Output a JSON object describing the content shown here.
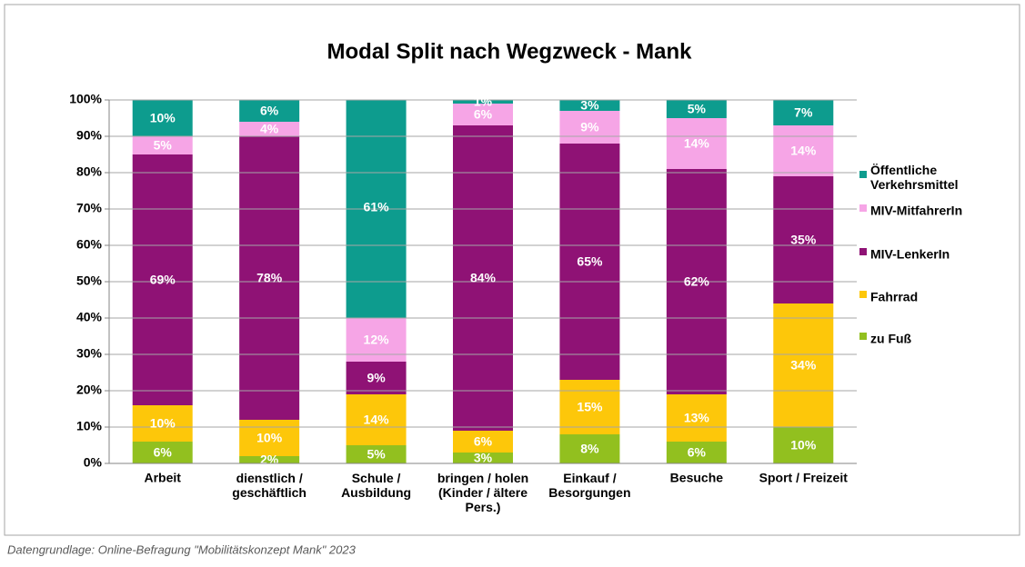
{
  "chart_data": {
    "type": "stacked_bar",
    "title": "Modal Split nach Wegzweck - Mank",
    "note": "Datengrundlage: Online-Befragung \"Mobilitätskonzept Mank\" 2023",
    "categories": [
      "Arbeit",
      "dienstlich /\ngeschäftlich",
      "Schule /\nAusbildung",
      "bringen / holen\n(Kinder / ältere\nPers.)",
      "Einkauf /\nBesorgungen",
      "Besuche",
      "Sport / Freizeit"
    ],
    "series": [
      {
        "name": "zu Fuß",
        "color": "#92c01f",
        "values": [
          6,
          2,
          5,
          3,
          8,
          6,
          10
        ],
        "value_labels": [
          "6%",
          "2%",
          "5%",
          "3%",
          "8%",
          "6%",
          "10%"
        ]
      },
      {
        "name": "Fahrrad",
        "color": "#fdc70a",
        "values": [
          10,
          10,
          14,
          6,
          15,
          13,
          34
        ],
        "value_labels": [
          "10%",
          "10%",
          "14%",
          "6%",
          "15%",
          "13%",
          "34%"
        ]
      },
      {
        "name": "MIV-LenkerIn",
        "color": "#8f1275",
        "values": [
          69,
          78,
          9,
          84,
          65,
          62,
          35
        ],
        "value_labels": [
          "69%",
          "78%",
          "9%",
          "84%",
          "65%",
          "62%",
          "35%"
        ]
      },
      {
        "name": "MIV-MitfahrerIn",
        "color": "#f6a5e6",
        "values": [
          5,
          4,
          12,
          6,
          9,
          14,
          14
        ],
        "value_labels": [
          "5%",
          "4%",
          "12%",
          "6%",
          "9%",
          "14%",
          "14%"
        ]
      },
      {
        "name": "Öffentliche\nVerkehrsmittel",
        "color": "#0d9c8e",
        "values": [
          10,
          6,
          61,
          1,
          3,
          5,
          7
        ],
        "value_labels": [
          "10%",
          "6%",
          "61%",
          "1%",
          "3%",
          "5%",
          "7%"
        ]
      }
    ],
    "ylim": [
      0,
      100
    ],
    "yticks": [
      {
        "value": 0,
        "label": "0%"
      },
      {
        "value": 10,
        "label": "10%"
      },
      {
        "value": 20,
        "label": "20%"
      },
      {
        "value": 30,
        "label": "30%"
      },
      {
        "value": 40,
        "label": "40%"
      },
      {
        "value": 50,
        "label": "50%"
      },
      {
        "value": 60,
        "label": "60%"
      },
      {
        "value": 70,
        "label": "70%"
      },
      {
        "value": 80,
        "label": "80%"
      },
      {
        "value": 90,
        "label": "90%"
      },
      {
        "value": 100,
        "label": "100%"
      }
    ],
    "grid": true,
    "legend": "right"
  }
}
